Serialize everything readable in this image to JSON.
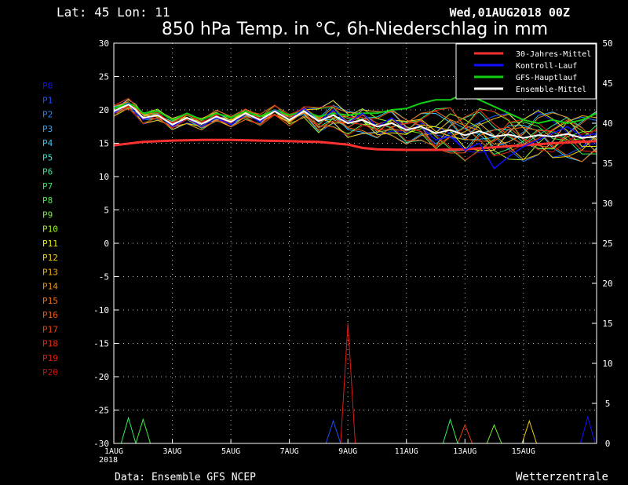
{
  "header": {
    "location": "Lat: 45 Lon: 11",
    "run": "Wed,01AUG2018 00Z",
    "title": "850 hPa Temp. in °C, 6h-Niederschlag in mm"
  },
  "footer": {
    "source": "Data: Ensemble GFS NCEP",
    "brand": "Wetterzentrale"
  },
  "members": [
    {
      "name": "P0",
      "color": "#1010ff"
    },
    {
      "name": "P1",
      "color": "#1a50ff"
    },
    {
      "name": "P2",
      "color": "#2080ff"
    },
    {
      "name": "P3",
      "color": "#30a8ff"
    },
    {
      "name": "P4",
      "color": "#30c8ff"
    },
    {
      "name": "P5",
      "color": "#30e0d0"
    },
    {
      "name": "P6",
      "color": "#30e890"
    },
    {
      "name": "P7",
      "color": "#30f060"
    },
    {
      "name": "P8",
      "color": "#40f040"
    },
    {
      "name": "P9",
      "color": "#70f030"
    },
    {
      "name": "P10",
      "color": "#a0f020"
    },
    {
      "name": "P11",
      "color": "#e8f010"
    },
    {
      "name": "P12",
      "color": "#f0d010"
    },
    {
      "name": "P13",
      "color": "#f0b010"
    },
    {
      "name": "P14",
      "color": "#f09010"
    },
    {
      "name": "P15",
      "color": "#f07010"
    },
    {
      "name": "P16",
      "color": "#f05a10"
    },
    {
      "name": "P17",
      "color": "#f04010"
    },
    {
      "name": "P18",
      "color": "#f02a10"
    },
    {
      "name": "P19",
      "color": "#e01a10"
    },
    {
      "name": "P20",
      "color": "#c01010"
    }
  ],
  "chart_data": {
    "type": "line",
    "x_labels": [
      "1AUG",
      "3AUG",
      "5AUG",
      "7AUG",
      "9AUG",
      "11AUG",
      "13AUG",
      "15AUG"
    ],
    "x_year": "2018",
    "x_range_days": [
      0,
      16.5
    ],
    "y_left": {
      "range": [
        -30,
        30
      ],
      "ticks": [
        30,
        25,
        20,
        15,
        10,
        5,
        0,
        -5,
        -10,
        -15,
        -20,
        -25,
        -30
      ]
    },
    "y_right": {
      "range": [
        0,
        50
      ],
      "ticks": [
        50,
        45,
        40,
        35,
        30,
        25,
        20,
        15,
        10,
        5,
        0
      ]
    },
    "grid": true,
    "legend_position": "top-right",
    "legend": [
      {
        "label": "30-Jahres-Mittel",
        "color": "#ff3030"
      },
      {
        "label": "Kontroll-Lauf",
        "color": "#1010ff"
      },
      {
        "label": "GFS-Hauptlauf",
        "color": "#10d010"
      },
      {
        "label": "Ensemble-Mittel",
        "color": "#ffffff"
      }
    ],
    "temp_series": {
      "climate_mean": [
        [
          0,
          14.7
        ],
        [
          1,
          15.2
        ],
        [
          2,
          15.4
        ],
        [
          3,
          15.5
        ],
        [
          4,
          15.5
        ],
        [
          5,
          15.4
        ],
        [
          6,
          15.3
        ],
        [
          7,
          15.2
        ],
        [
          8,
          14.8
        ],
        [
          8.5,
          14.3
        ],
        [
          9,
          14.1
        ],
        [
          10,
          14.0
        ],
        [
          11,
          14.0
        ],
        [
          12,
          14.1
        ],
        [
          13,
          14.4
        ],
        [
          14,
          14.7
        ],
        [
          15,
          15.0
        ],
        [
          16,
          15.2
        ],
        [
          16.5,
          15.3
        ]
      ],
      "control_run": [
        [
          0,
          19.5
        ],
        [
          0.5,
          21
        ],
        [
          0.75,
          19.5
        ],
        [
          1,
          18.5
        ],
        [
          1.5,
          19.3
        ],
        [
          2,
          17.5
        ],
        [
          2.5,
          18.8
        ],
        [
          3,
          17.5
        ],
        [
          3.5,
          18.8
        ],
        [
          4,
          17.8
        ],
        [
          4.5,
          19.5
        ],
        [
          5,
          18.2
        ],
        [
          5.5,
          20
        ],
        [
          6,
          18.5
        ],
        [
          6.5,
          20.2
        ],
        [
          7,
          18.2
        ],
        [
          7.5,
          20
        ],
        [
          8,
          18
        ],
        [
          8.5,
          19.5
        ],
        [
          9,
          17.5
        ],
        [
          9.5,
          18.8
        ],
        [
          10,
          17
        ],
        [
          10.5,
          17.5
        ],
        [
          11,
          15.5
        ],
        [
          11.5,
          16
        ],
        [
          12,
          14
        ],
        [
          12.5,
          15
        ],
        [
          13,
          11.2
        ],
        [
          13.5,
          13
        ],
        [
          14,
          14.5
        ],
        [
          14.5,
          15.5
        ],
        [
          15,
          16.5
        ],
        [
          15.5,
          17.5
        ],
        [
          16,
          16
        ],
        [
          16.5,
          16.5
        ]
      ],
      "gfs_main": [
        [
          0,
          20.2
        ],
        [
          0.5,
          21
        ],
        [
          0.75,
          20.5
        ],
        [
          1,
          19.5
        ],
        [
          1.5,
          19.8
        ],
        [
          2,
          18.5
        ],
        [
          2.5,
          19.5
        ],
        [
          3,
          18.5
        ],
        [
          3.5,
          19.5
        ],
        [
          4,
          18.8
        ],
        [
          4.5,
          19.8
        ],
        [
          5,
          19
        ],
        [
          5.5,
          20
        ],
        [
          6,
          19.2
        ],
        [
          6.5,
          19.8
        ],
        [
          7,
          19
        ],
        [
          7.5,
          19.5
        ],
        [
          8,
          19.2
        ],
        [
          8.5,
          19.5
        ],
        [
          9,
          19.5
        ],
        [
          9.5,
          20
        ],
        [
          10,
          20.2
        ],
        [
          10.5,
          21
        ],
        [
          11,
          21.5
        ],
        [
          11.5,
          21.5
        ],
        [
          12,
          22.5
        ],
        [
          12.5,
          21.5
        ],
        [
          13,
          20.5
        ],
        [
          13.5,
          19.5
        ],
        [
          14,
          18.5
        ],
        [
          14.5,
          18
        ],
        [
          15,
          18.5
        ],
        [
          15.5,
          18
        ],
        [
          16,
          18.5
        ],
        [
          16.5,
          19.5
        ]
      ],
      "ensemble_mean": [
        [
          0,
          19.8
        ],
        [
          0.5,
          20.8
        ],
        [
          0.75,
          20
        ],
        [
          1,
          18.8
        ],
        [
          1.5,
          19.2
        ],
        [
          2,
          17.8
        ],
        [
          2.5,
          18.8
        ],
        [
          3,
          17.9
        ],
        [
          3.5,
          19
        ],
        [
          4,
          18.2
        ],
        [
          4.5,
          19.5
        ],
        [
          5,
          18.5
        ],
        [
          5.5,
          19.8
        ],
        [
          6,
          18.5
        ],
        [
          6.5,
          19.8
        ],
        [
          7,
          18.3
        ],
        [
          7.5,
          19.2
        ],
        [
          8,
          18
        ],
        [
          8.5,
          18.5
        ],
        [
          9,
          17.5
        ],
        [
          9.5,
          18
        ],
        [
          10,
          17
        ],
        [
          10.5,
          17.5
        ],
        [
          11,
          16.5
        ],
        [
          11.5,
          17
        ],
        [
          12,
          16.2
        ],
        [
          12.5,
          16.8
        ],
        [
          13,
          16
        ],
        [
          13.5,
          16.3
        ],
        [
          14,
          15.8
        ],
        [
          14.5,
          16.2
        ],
        [
          15,
          16
        ],
        [
          15.5,
          16.4
        ],
        [
          16,
          15.8
        ],
        [
          16.5,
          16
        ]
      ]
    },
    "precip_peaks": [
      {
        "name": "P19",
        "x": 8,
        "y": 15
      },
      {
        "name": "P0",
        "x": 16.2,
        "y": 3.3
      },
      {
        "name": "P7",
        "x": 0.5,
        "y": 3.2
      },
      {
        "name": "P8",
        "x": 1,
        "y": 3
      },
      {
        "name": "P1",
        "x": 7.5,
        "y": 2.8
      },
      {
        "name": "P17",
        "x": 12,
        "y": 2.3
      },
      {
        "name": "P7",
        "x": 11.5,
        "y": 3
      },
      {
        "name": "P12",
        "x": 14.2,
        "y": 2.8
      },
      {
        "name": "P9",
        "x": 13,
        "y": 2.3
      }
    ]
  }
}
